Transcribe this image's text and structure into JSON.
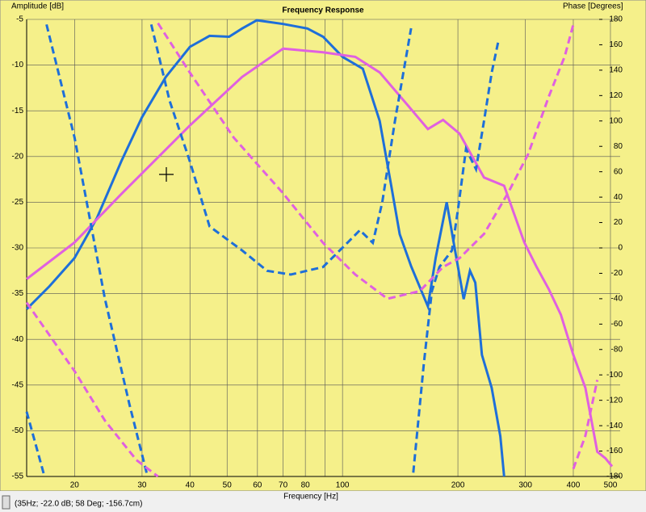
{
  "chart_data": {
    "type": "line",
    "title": "Frequency Response",
    "y_label": "Amplitude [dB]",
    "y2_label": "Phase [Degrees]",
    "x_label": "Frequency [Hz]",
    "status": "(35Hz; -22.0 dB; 58 Deg; -156.7cm)",
    "x_scale": "log",
    "grid": true,
    "xlim": [
      15,
      530
    ],
    "xticks": [
      20,
      30,
      40,
      50,
      60,
      70,
      80,
      100,
      200,
      300,
      400,
      500
    ],
    "xgrid": [
      20,
      30,
      40,
      50,
      60,
      70,
      80,
      90,
      100,
      200,
      300,
      400,
      500
    ],
    "ylim": [
      -55,
      -5
    ],
    "yticks": [
      -55,
      -50,
      -45,
      -40,
      -35,
      -30,
      -25,
      -20,
      -15,
      -10,
      -5
    ],
    "y2lim": [
      -180,
      180
    ],
    "y2ticks": [
      -180,
      -160,
      -140,
      -120,
      -100,
      -80,
      -60,
      -40,
      -20,
      0,
      20,
      40,
      60,
      80,
      100,
      120,
      140,
      160,
      180
    ],
    "series": [
      {
        "color": "#1e6fd9",
        "dash": false,
        "axis": "y",
        "x": [
          15,
          17.2,
          20,
          22.9,
          26.5,
          30,
          34.6,
          40,
          45,
          50.6,
          54.7,
          59.8,
          70,
          81,
          89,
          100,
          113,
          125,
          134,
          141,
          151,
          167,
          175,
          187,
          195,
          207,
          215,
          222,
          231,
          245,
          258,
          264
        ],
        "values": [
          -36.7,
          -34.2,
          -31.1,
          -26.7,
          -20.5,
          -15.7,
          -11.3,
          -8,
          -6.8,
          -6.9,
          -6,
          -5.1,
          -5.5,
          -6,
          -6.9,
          -9.1,
          -10.4,
          -16.1,
          -23.2,
          -28.5,
          -32,
          -36.4,
          -31.1,
          -25,
          -29.4,
          -35.6,
          -32.5,
          -33.8,
          -41.7,
          -45.3,
          -50.6,
          -55
        ]
      },
      {
        "color": "#e060e0",
        "dash": false,
        "axis": "y",
        "x": [
          15,
          20,
          26.5,
          40,
          54.7,
          70,
          89,
          108,
          125,
          148,
          167,
          183,
          202,
          234,
          264,
          298,
          320,
          345,
          371,
          400,
          430,
          462,
          485,
          505
        ],
        "values": [
          -33.4,
          -29.4,
          -24.1,
          -16.6,
          -11.3,
          -8.2,
          -8.6,
          -9.1,
          -10.8,
          -14.4,
          -17,
          -16,
          -17.5,
          -22.3,
          -23.2,
          -29.4,
          -32,
          -34.5,
          -37.3,
          -41.7,
          -45.3,
          -52.3,
          -53,
          -53.9
        ]
      },
      {
        "color": "#1e6fd9",
        "dash": true,
        "axis": "y2",
        "x": [
          15,
          16.7,
          null,
          16.9,
          20,
          24,
          27.8,
          31,
          null,
          31.7,
          35.4,
          40,
          45,
          54.7,
          63.6,
          73.3,
          89,
          103,
          111,
          120,
          127,
          137,
          151,
          null,
          153,
          163,
          171,
          179,
          193,
          200,
          210,
          223,
          234,
          245,
          255
        ],
        "values": [
          -129,
          -180,
          null,
          176,
          87,
          -40,
          -123,
          -180,
          null,
          176,
          116,
          68,
          17,
          -2,
          -18,
          -21,
          -15,
          4,
          14,
          4,
          36,
          100,
          173,
          null,
          -177,
          -91,
          -34,
          -15,
          -2,
          30,
          78,
          62,
          100,
          138,
          163
        ]
      },
      {
        "color": "#e060e0",
        "dash": true,
        "axis": "y2",
        "x": [
          15,
          20,
          24,
          29,
          33,
          null,
          33,
          40,
          52,
          70,
          89,
          108,
          131,
          159,
          183,
          202,
          234,
          270,
          305,
          345,
          380,
          400,
          null,
          400,
          430,
          462
        ],
        "values": [
          -43,
          -97,
          -136,
          -167,
          -180,
          null,
          177,
          138,
          87,
          43,
          4,
          -21,
          -40,
          -34,
          -15,
          -8,
          11,
          43,
          74,
          119,
          151,
          176,
          null,
          -174,
          -148,
          -104
        ]
      }
    ]
  }
}
